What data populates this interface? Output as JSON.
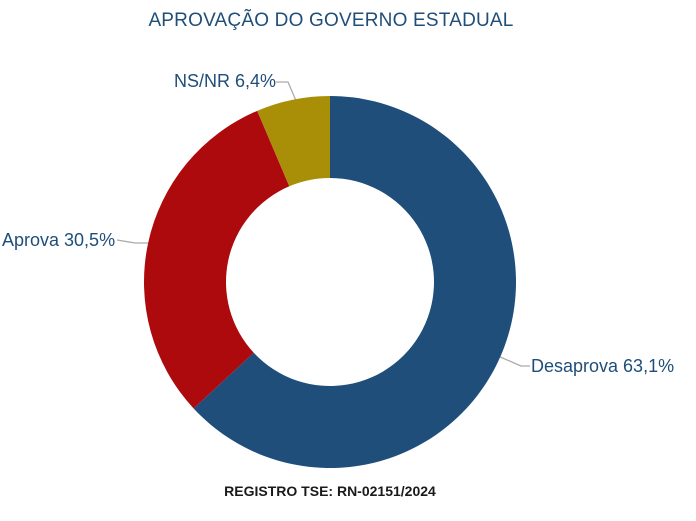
{
  "title": "APROVAÇÃO DO GOVERNO ESTADUAL",
  "footer": "REGISTRO TSE: RN-02151/2024",
  "colors": {
    "title_text": "#1f4e79",
    "label_text": "#1f4e79",
    "footer_text": "#1a1a1a",
    "leader_line": "#ababab",
    "background": "#ffffff"
  },
  "chart_data": {
    "type": "pie",
    "subtype": "donut",
    "title": "APROVAÇÃO DO GOVERNO ESTADUAL",
    "categories": [
      "Desaprova",
      "Aprova",
      "NS/NR"
    ],
    "values": [
      63.1,
      30.5,
      6.4
    ],
    "unit": "%",
    "start_angle_deg": 0,
    "direction": "clockwise",
    "inner_radius_ratio": 0.56,
    "legend_position": "none",
    "annotation": "REGISTRO TSE: RN-02151/2024",
    "slices": [
      {
        "key": "desaprova",
        "label": "Desaprova",
        "value": 63.1,
        "display": "Desaprova 63,1%",
        "color": "#1f4e7b"
      },
      {
        "key": "aprova",
        "label": "Aprova",
        "value": 30.5,
        "display": "Aprova 30,5%",
        "color": "#ad0a0d"
      },
      {
        "key": "ns-nr",
        "label": "NS/NR",
        "value": 6.4,
        "display": "NS/NR 6,4%",
        "color": "#a98f07"
      }
    ]
  }
}
